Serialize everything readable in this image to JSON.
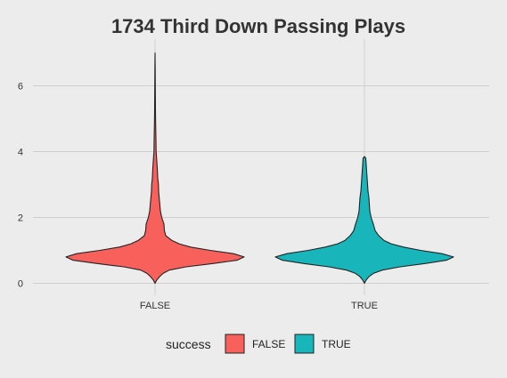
{
  "chart_data": {
    "type": "violin",
    "title": "1734 Third Down Passing Plays",
    "xlabel": "",
    "ylabel": "",
    "categories": [
      "FALSE",
      "TRUE"
    ],
    "ylim": [
      0,
      7.2
    ],
    "yticks": [
      0,
      2,
      4,
      6
    ],
    "grid": true,
    "legend": {
      "title": "success",
      "position": "bottom",
      "entries": [
        "FALSE",
        "TRUE"
      ]
    },
    "colors": {
      "FALSE": "#f8605c",
      "TRUE": "#18b6ba",
      "outline": "#222222",
      "grid": "#cfcfcf",
      "background": "#ececec"
    },
    "series": [
      {
        "category": "FALSE",
        "y_min": 0,
        "y_max": 7.0,
        "density_profile": [
          [
            0.0,
            0.0
          ],
          [
            0.1,
            0.02
          ],
          [
            0.2,
            0.05
          ],
          [
            0.3,
            0.09
          ],
          [
            0.4,
            0.16
          ],
          [
            0.5,
            0.35
          ],
          [
            0.6,
            0.65
          ],
          [
            0.7,
            0.92
          ],
          [
            0.8,
            1.0
          ],
          [
            0.9,
            0.88
          ],
          [
            1.0,
            0.62
          ],
          [
            1.1,
            0.4
          ],
          [
            1.2,
            0.27
          ],
          [
            1.3,
            0.19
          ],
          [
            1.45,
            0.12
          ],
          [
            1.6,
            0.105
          ],
          [
            1.8,
            0.1
          ],
          [
            2.0,
            0.075
          ],
          [
            2.2,
            0.06
          ],
          [
            2.5,
            0.05
          ],
          [
            2.8,
            0.04
          ],
          [
            3.0,
            0.038
          ],
          [
            3.2,
            0.03
          ],
          [
            3.5,
            0.025
          ],
          [
            3.7,
            0.02
          ],
          [
            4.0,
            0.012
          ],
          [
            4.4,
            0.01
          ],
          [
            4.8,
            0.007
          ],
          [
            5.2,
            0.005
          ],
          [
            5.6,
            0.004
          ],
          [
            6.0,
            0.003
          ],
          [
            6.5,
            0.002
          ],
          [
            7.0,
            0.0
          ]
        ]
      },
      {
        "category": "TRUE",
        "y_min": 0,
        "y_max": 3.85,
        "density_profile": [
          [
            0.0,
            0.0
          ],
          [
            0.1,
            0.02
          ],
          [
            0.2,
            0.05
          ],
          [
            0.3,
            0.1
          ],
          [
            0.4,
            0.2
          ],
          [
            0.5,
            0.4
          ],
          [
            0.6,
            0.68
          ],
          [
            0.7,
            0.92
          ],
          [
            0.8,
            1.0
          ],
          [
            0.9,
            0.87
          ],
          [
            1.0,
            0.63
          ],
          [
            1.1,
            0.44
          ],
          [
            1.2,
            0.3
          ],
          [
            1.3,
            0.22
          ],
          [
            1.45,
            0.16
          ],
          [
            1.6,
            0.12
          ],
          [
            1.8,
            0.1
          ],
          [
            2.0,
            0.075
          ],
          [
            2.2,
            0.06
          ],
          [
            2.4,
            0.055
          ],
          [
            2.6,
            0.05
          ],
          [
            2.8,
            0.04
          ],
          [
            3.0,
            0.035
          ],
          [
            3.2,
            0.03
          ],
          [
            3.4,
            0.025
          ],
          [
            3.6,
            0.02
          ],
          [
            3.8,
            0.015
          ],
          [
            3.85,
            0.0
          ]
        ]
      }
    ]
  }
}
